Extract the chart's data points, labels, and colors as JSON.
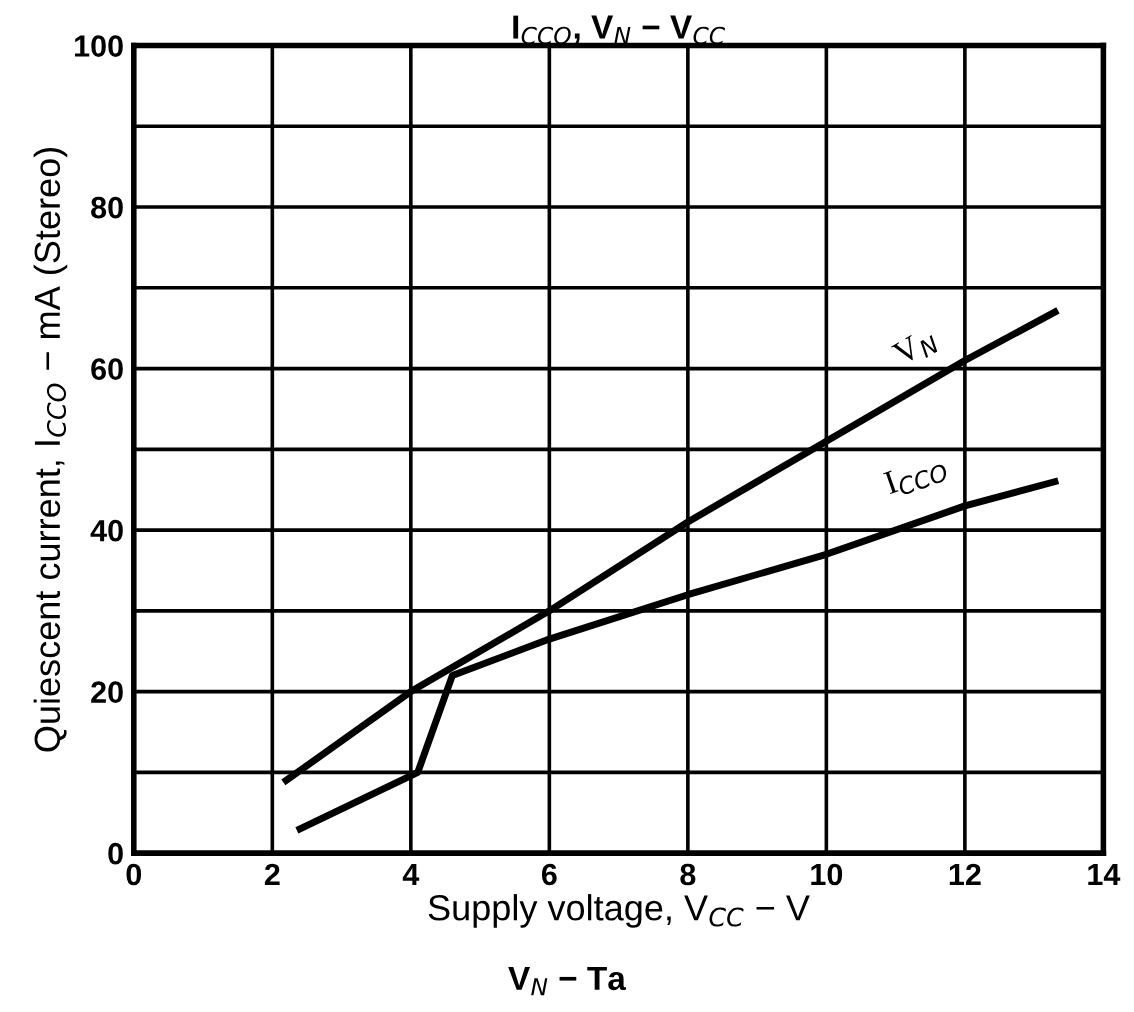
{
  "chart_data": {
    "type": "line",
    "title": "I$_{CCO}$, V$_{N}$ − V$_{CC}$",
    "xlabel": "Supply voltage, V$_{CC}$ − V",
    "ylabel": "Quiescent current, I$_{CCO}$ − mA (Stereo)",
    "annotations": [
      "V$_{N}$ − Ta"
    ],
    "series": [
      {
        "name": "V$_{N}$",
        "color": "#000000",
        "x": [
          2.2,
          4,
          6,
          8,
          10,
          12,
          13.3
        ],
        "values": [
          9,
          20,
          30,
          41,
          51,
          61,
          67
        ]
      },
      {
        "name": "I$_{CCO}$",
        "color": "#000000",
        "x": [
          2.4,
          4.1,
          4.6,
          6,
          8,
          10,
          12,
          13.3
        ],
        "values": [
          3,
          10,
          22,
          26.5,
          32,
          37,
          43,
          46
        ]
      }
    ],
    "xlim": [
      0,
      14
    ],
    "ylim": [
      0,
      100
    ],
    "xticks": [
      0,
      2,
      4,
      6,
      8,
      10,
      12,
      14
    ],
    "yticks": [
      0,
      {
        "value": 10,
        "label": null
      },
      20,
      {
        "value": 30,
        "label": null
      },
      40,
      {
        "value": 50,
        "label": null
      },
      60,
      {
        "value": 70,
        "label": null
      },
      80,
      {
        "value": 90,
        "label": null
      },
      100
    ],
    "grid": true,
    "legend": false,
    "marker": "none",
    "line_style": "solid"
  }
}
